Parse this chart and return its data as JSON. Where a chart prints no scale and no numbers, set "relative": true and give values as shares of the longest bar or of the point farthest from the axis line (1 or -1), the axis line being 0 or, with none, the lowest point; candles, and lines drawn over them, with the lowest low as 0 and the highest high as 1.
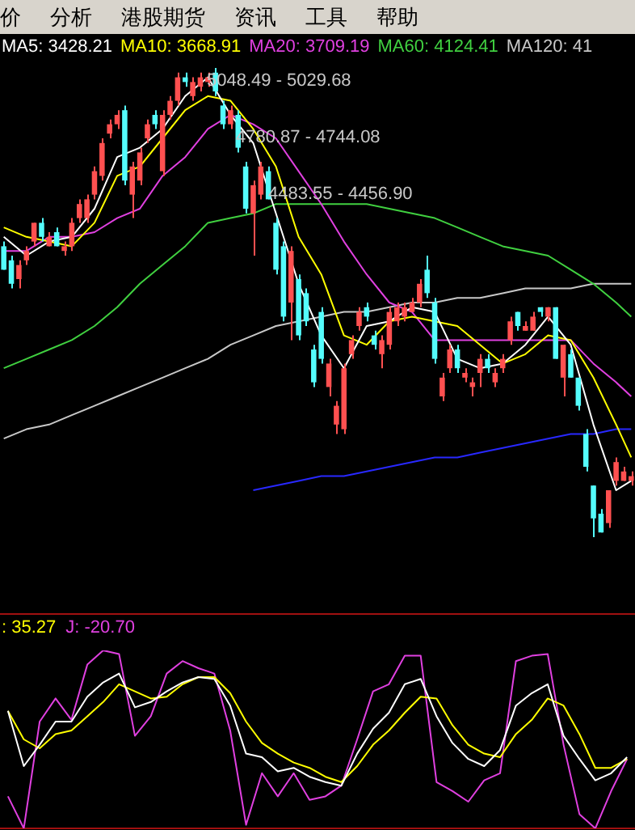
{
  "chart_data": [
    {
      "type": "candlestick",
      "relative": true,
      "tick_labels": false,
      "legend": "top left",
      "annotations": [
        "价",
        "分析",
        "港股期货",
        "资讯",
        "工具",
        "帮助",
        "5048.49 - 5029.68",
        "4780.87 - 4744.08",
        "4483.55 - 4456.90"
      ],
      "categories": [
        null,
        null,
        null,
        null,
        null,
        null,
        null,
        null,
        null,
        null,
        null,
        null,
        null,
        null,
        null,
        null,
        null,
        null,
        null,
        null,
        null,
        null,
        null,
        null,
        null,
        null,
        null,
        null,
        null,
        null,
        null,
        null,
        null,
        null,
        null,
        null,
        null,
        null,
        null,
        null,
        null,
        null,
        null,
        null,
        null,
        null,
        null,
        null,
        null,
        null,
        null,
        null,
        null,
        null,
        null,
        null,
        null,
        null,
        null,
        null,
        null,
        null,
        null,
        null,
        null,
        null,
        null,
        null,
        null,
        null,
        null,
        null,
        null,
        null,
        null,
        null,
        null,
        null,
        null,
        null,
        null,
        null,
        null,
        null
      ],
      "ohlc": [
        [
          0.62,
          0.63,
          0.57,
          0.57
        ],
        [
          0.59,
          0.6,
          0.53,
          0.54
        ],
        [
          0.55,
          0.59,
          0.53,
          0.58
        ],
        [
          0.59,
          0.62,
          0.58,
          0.61
        ],
        [
          0.63,
          0.67,
          0.62,
          0.67
        ],
        [
          0.67,
          0.68,
          0.63,
          0.64
        ],
        [
          0.62,
          0.65,
          0.62,
          0.64
        ],
        [
          0.65,
          0.66,
          0.62,
          0.62
        ],
        [
          0.61,
          0.63,
          0.6,
          0.62
        ],
        [
          0.62,
          0.68,
          0.61,
          0.67
        ],
        [
          0.68,
          0.72,
          0.67,
          0.71
        ],
        [
          0.68,
          0.73,
          0.67,
          0.72
        ],
        [
          0.73,
          0.79,
          0.72,
          0.78
        ],
        [
          0.77,
          0.85,
          0.76,
          0.84
        ],
        [
          0.86,
          0.89,
          0.85,
          0.88
        ],
        [
          0.88,
          0.91,
          0.87,
          0.9
        ],
        [
          0.91,
          0.92,
          0.75,
          0.76
        ],
        [
          0.73,
          0.8,
          0.68,
          0.79
        ],
        [
          0.76,
          0.83,
          0.75,
          0.82
        ],
        [
          0.85,
          0.89,
          0.84,
          0.88
        ],
        [
          0.9,
          0.91,
          0.87,
          0.88
        ],
        [
          0.78,
          0.91,
          0.77,
          0.9
        ],
        [
          0.9,
          0.94,
          0.89,
          0.93
        ],
        [
          0.93,
          0.99,
          0.92,
          0.98
        ],
        [
          0.98,
          0.99,
          0.96,
          0.97
        ],
        [
          0.94,
          0.98,
          0.93,
          0.97
        ],
        [
          0.96,
          0.99,
          0.95,
          0.98
        ],
        [
          0.97,
          0.99,
          0.96,
          0.98
        ],
        [
          0.99,
          1,
          0.94,
          0.95
        ],
        [
          0.92,
          0.93,
          0.87,
          0.88
        ],
        [
          0.88,
          0.92,
          0.87,
          0.91
        ],
        [
          0.9,
          0.91,
          0.82,
          0.83
        ],
        [
          0.79,
          0.8,
          0.69,
          0.7
        ],
        [
          0.69,
          0.76,
          0.6,
          0.75
        ],
        [
          0.73,
          0.8,
          0.72,
          0.79
        ],
        [
          0.78,
          0.79,
          0.72,
          0.72
        ],
        [
          0.67,
          0.68,
          0.56,
          0.57
        ],
        [
          0.62,
          0.63,
          0.46,
          0.47
        ],
        [
          0.5,
          0.62,
          0.42,
          0.61
        ],
        [
          0.55,
          0.56,
          0.42,
          0.43
        ],
        [
          0.52,
          0.53,
          0.45,
          0.46
        ],
        [
          0.4,
          0.41,
          0.32,
          0.33
        ],
        [
          0.48,
          0.49,
          0.37,
          0.38
        ],
        [
          0.32,
          0.38,
          0.3,
          0.37
        ],
        [
          0.24,
          0.29,
          0.22,
          0.28
        ],
        [
          0.23,
          0.37,
          0.22,
          0.36
        ],
        [
          0.39,
          0.43,
          0.38,
          0.42
        ],
        [
          0.45,
          0.49,
          0.44,
          0.48
        ],
        [
          0.49,
          0.5,
          0.46,
          0.47
        ],
        [
          0.43,
          0.44,
          0.4,
          0.41
        ],
        [
          0.39,
          0.43,
          0.36,
          0.42
        ],
        [
          0.41,
          0.49,
          0.4,
          0.48
        ],
        [
          0.46,
          0.5,
          0.45,
          0.49
        ],
        [
          0.47,
          0.5,
          0.46,
          0.49
        ],
        [
          0.48,
          0.51,
          0.48,
          0.5
        ],
        [
          0.5,
          0.55,
          0.49,
          0.54
        ],
        [
          0.57,
          0.6,
          0.51,
          0.52
        ],
        [
          0.5,
          0.51,
          0.37,
          0.38
        ],
        [
          0.3,
          0.35,
          0.29,
          0.34
        ],
        [
          0.36,
          0.41,
          0.35,
          0.4
        ],
        [
          0.4,
          0.41,
          0.35,
          0.36
        ],
        [
          0.34,
          0.36,
          0.33,
          0.35
        ],
        [
          0.32,
          0.34,
          0.3,
          0.33
        ],
        [
          0.35,
          0.39,
          0.32,
          0.38
        ],
        [
          0.38,
          0.39,
          0.35,
          0.36
        ],
        [
          0.33,
          0.36,
          0.32,
          0.35
        ],
        [
          0.36,
          0.39,
          0.35,
          0.38
        ],
        [
          0.42,
          0.47,
          0.41,
          0.46
        ],
        [
          0.48,
          0.48,
          0.44,
          0.45
        ],
        [
          0.44,
          0.46,
          0.44,
          0.45
        ],
        [
          0.44,
          0.48,
          0.44,
          0.47
        ],
        [
          0.49,
          0.49,
          0.47,
          0.48
        ],
        [
          0.47,
          0.49,
          0.46,
          0.49
        ],
        [
          0.49,
          0.49,
          0.38,
          0.38
        ],
        [
          0.34,
          0.41,
          0.3,
          0.41
        ],
        [
          0.39,
          0.4,
          0.34,
          0.34
        ],
        [
          0.34,
          0.34,
          0.27,
          0.28
        ],
        [
          0.22,
          0.23,
          0.14,
          0.15
        ],
        [
          0.11,
          0.11,
          0,
          0.04
        ],
        [
          0.05,
          0.06,
          0.01,
          0.01
        ],
        [
          0.03,
          0.1,
          0.02,
          0.1
        ],
        [
          0.12,
          0.17,
          0.11,
          0.16
        ],
        [
          0.12,
          0.15,
          0.12,
          0.14
        ],
        [
          0.12,
          0.14,
          0.11,
          0.13
        ]
      ],
      "colors": [
        "#54fcfc",
        "#54fcfc",
        "#ff5050",
        "#ff5050",
        "#ff5050",
        "#54fcfc",
        "#ff5050",
        "#54fcfc",
        "#ff5050",
        "#ff5050",
        "#ff5050",
        "#ff5050",
        "#ff5050",
        "#ff5050",
        "#ff5050",
        "#ff5050",
        "#54fcfc",
        "#ff5050",
        "#ff5050",
        "#ff5050",
        "#54fcfc",
        "#ff5050",
        "#ff5050",
        "#ff5050",
        "#54fcfc",
        "#ff5050",
        "#ff5050",
        "#ff5050",
        "#54fcfc",
        "#54fcfc",
        "#ff5050",
        "#54fcfc",
        "#54fcfc",
        "#ff5050",
        "#ff5050",
        "#54fcfc",
        "#54fcfc",
        "#54fcfc",
        "#ff5050",
        "#54fcfc",
        "#54fcfc",
        "#54fcfc",
        "#54fcfc",
        "#ff5050",
        "#ff5050",
        "#ff5050",
        "#ff5050",
        "#ff5050",
        "#54fcfc",
        "#54fcfc",
        "#ff5050",
        "#ff5050",
        "#ff5050",
        "#ff5050",
        "#ff5050",
        "#ff5050",
        "#54fcfc",
        "#54fcfc",
        "#ff5050",
        "#ff5050",
        "#54fcfc",
        "#ff5050",
        "#ff5050",
        "#ff5050",
        "#54fcfc",
        "#ff5050",
        "#ff5050",
        "#ff5050",
        "#54fcfc",
        "#ff5050",
        "#ff5050",
        "#54fcfc",
        "#ff5050",
        "#54fcfc",
        "#ff5050",
        "#54fcfc",
        "#54fcfc",
        "#54fcfc",
        "#54fcfc",
        "#54fcfc",
        "#ff5050",
        "#ff5050",
        "#ff5050",
        "#ff5050"
      ],
      "series": [
        {
          "type": "line",
          "name": "MA5: 3428.21",
          "color": "#ffffff",
          "values": [
            0.64,
            null,
            null,
            0.6,
            null,
            null,
            0.63,
            null,
            null,
            0.64,
            null,
            null,
            0.7,
            null,
            null,
            0.81,
            null,
            null,
            0.83,
            null,
            null,
            0.87,
            null,
            null,
            0.94,
            null,
            null,
            0.98,
            null,
            null,
            0.9,
            null,
            null,
            0.84,
            null,
            null,
            0.69,
            null,
            null,
            0.54,
            null,
            null,
            0.43,
            null,
            null,
            0.36,
            null,
            null,
            0.45,
            null,
            null,
            0.46,
            null,
            null,
            0.49,
            null,
            null,
            0.48,
            null,
            null,
            0.38,
            null,
            null,
            0.36,
            null,
            null,
            0.37,
            null,
            null,
            0.41,
            null,
            null,
            0.47,
            null,
            null,
            0.41,
            null,
            null,
            0.24,
            null,
            null,
            0.1,
            null,
            0.12
          ]
        },
        {
          "type": "line",
          "name": "MA10: 3668.91",
          "color": "#ffff00",
          "values": [
            0.66,
            null,
            null,
            0.64,
            null,
            null,
            0.63,
            null,
            null,
            0.62,
            null,
            null,
            0.67,
            null,
            null,
            0.77,
            null,
            null,
            0.79,
            null,
            null,
            0.85,
            null,
            null,
            0.91,
            null,
            null,
            0.94,
            null,
            null,
            0.93,
            null,
            null,
            0.87,
            null,
            null,
            0.79,
            null,
            null,
            0.64,
            null,
            null,
            0.56,
            null,
            null,
            0.43,
            null,
            null,
            0.41,
            null,
            null,
            0.46,
            null,
            null,
            0.47,
            null,
            null,
            0.46,
            null,
            null,
            0.45,
            null,
            null,
            0.41,
            null,
            null,
            0.37,
            null,
            null,
            0.39,
            null,
            null,
            0.43,
            null,
            null,
            0.42,
            null,
            null,
            0.34,
            null,
            null,
            0.24,
            null,
            0.17
          ]
        },
        {
          "type": "line",
          "name": "MA20: 3709.19",
          "color": "#e040e0",
          "values": [
            0.61,
            null,
            null,
            0.61,
            null,
            null,
            0.64,
            null,
            null,
            0.64,
            null,
            null,
            0.65,
            null,
            null,
            0.68,
            null,
            null,
            0.7,
            null,
            null,
            0.77,
            null,
            null,
            0.81,
            null,
            null,
            0.87,
            null,
            null,
            0.9,
            null,
            null,
            0.88,
            null,
            null,
            0.85,
            null,
            null,
            0.78,
            null,
            null,
            0.71,
            null,
            null,
            0.63,
            null,
            null,
            0.56,
            null,
            null,
            0.5,
            null,
            null,
            0.48,
            null,
            null,
            0.42,
            null,
            null,
            0.42,
            null,
            null,
            0.42,
            null,
            null,
            0.42,
            null,
            null,
            0.42,
            null,
            null,
            0.42,
            null,
            null,
            0.42,
            null,
            null,
            0.37,
            null,
            null,
            0.33,
            null,
            0.3
          ]
        },
        {
          "type": "line",
          "name": "MA60: 4124.41",
          "color": "#40d040",
          "values": [
            0.36,
            null,
            null,
            0.38,
            null,
            null,
            0.4,
            null,
            null,
            0.42,
            null,
            null,
            0.45,
            null,
            null,
            0.49,
            null,
            null,
            0.54,
            null,
            null,
            0.58,
            null,
            null,
            0.62,
            null,
            null,
            0.67,
            null,
            null,
            0.68,
            null,
            null,
            0.69,
            null,
            null,
            0.71,
            null,
            null,
            0.71,
            null,
            null,
            0.71,
            null,
            null,
            0.71,
            null,
            null,
            0.71,
            null,
            null,
            0.7,
            null,
            null,
            0.69,
            null,
            null,
            0.68,
            null,
            null,
            0.66,
            null,
            null,
            0.64,
            null,
            null,
            0.62,
            null,
            null,
            0.61,
            null,
            null,
            0.6,
            null,
            null,
            0.57,
            null,
            null,
            0.54,
            null,
            null,
            0.5,
            null,
            0.47
          ]
        },
        {
          "type": "line",
          "name": "MA120: 41",
          "color": "#c8c8c8",
          "values": [
            0.21,
            null,
            null,
            0.23,
            null,
            null,
            0.24,
            null,
            null,
            0.26,
            null,
            null,
            0.28,
            null,
            null,
            0.3,
            null,
            null,
            0.32,
            null,
            null,
            0.34,
            null,
            null,
            0.36,
            null,
            null,
            0.38,
            null,
            null,
            0.41,
            null,
            null,
            0.43,
            null,
            null,
            0.45,
            null,
            null,
            0.46,
            null,
            null,
            0.47,
            null,
            null,
            0.48,
            null,
            null,
            0.48,
            null,
            null,
            0.49,
            null,
            null,
            0.5,
            null,
            null,
            0.5,
            null,
            null,
            0.51,
            null,
            null,
            0.51,
            null,
            null,
            0.52,
            null,
            null,
            0.53,
            null,
            null,
            0.53,
            null,
            null,
            0.53,
            null,
            null,
            0.54,
            null,
            null,
            0.54,
            null,
            0.54
          ]
        },
        {
          "type": "line",
          "color": "#2828ff",
          "values": [
            null,
            null,
            null,
            null,
            null,
            null,
            null,
            null,
            null,
            null,
            null,
            null,
            null,
            null,
            null,
            null,
            null,
            null,
            null,
            null,
            null,
            null,
            null,
            null,
            null,
            null,
            null,
            null,
            null,
            null,
            null,
            null,
            null,
            0.1,
            null,
            null,
            0.11,
            null,
            null,
            0.12,
            null,
            null,
            0.13,
            null,
            null,
            0.13,
            null,
            null,
            0.14,
            null,
            null,
            0.15,
            null,
            null,
            0.16,
            null,
            null,
            0.17,
            null,
            null,
            0.17,
            null,
            null,
            0.18,
            null,
            null,
            0.19,
            null,
            null,
            0.2,
            null,
            null,
            0.21,
            null,
            null,
            0.22,
            null,
            null,
            0.22,
            null,
            null,
            0.23,
            null,
            0.23
          ]
        }
      ]
    },
    {
      "type": "line",
      "relative": true,
      "tick_labels": false,
      "legend": "top left",
      "categories": [
        null,
        null,
        null,
        null,
        null,
        null,
        null,
        null,
        null,
        null,
        null,
        null,
        null,
        null,
        null,
        null,
        null,
        null,
        null,
        null,
        null,
        null,
        null,
        null,
        null,
        null,
        null,
        null,
        null,
        null,
        null,
        null,
        null,
        null,
        null,
        null,
        null,
        null,
        null,
        null
      ],
      "series": [
        {
          "color": "#ffffff",
          "values": [
            0.66,
            0.35,
            0.47,
            0.6,
            0.6,
            0.74,
            0.82,
            0.87,
            0.68,
            0.71,
            0.77,
            0.82,
            0.85,
            0.84,
            0.69,
            0.42,
            0.4,
            0.32,
            0.34,
            0.29,
            0.26,
            0.24,
            0.42,
            0.56,
            0.65,
            0.81,
            0.84,
            0.63,
            0.48,
            0.39,
            0.35,
            0.44,
            0.69,
            0.76,
            0.81,
            0.52,
            0.39,
            0.27,
            0.31,
            0.4
          ]
        },
        {
          "name": ": 35.27",
          "color": "#ffff00",
          "values": [
            0.66,
            0.5,
            0.45,
            0.53,
            0.55,
            0.63,
            0.71,
            0.81,
            0.77,
            0.73,
            0.74,
            0.81,
            0.85,
            0.85,
            0.76,
            0.6,
            0.48,
            0.42,
            0.37,
            0.34,
            0.29,
            0.26,
            0.35,
            0.47,
            0.55,
            0.65,
            0.74,
            0.73,
            0.58,
            0.47,
            0.42,
            0.4,
            0.53,
            0.61,
            0.73,
            0.69,
            0.53,
            0.34,
            0.34,
            0.39
          ]
        },
        {
          "name": "J: -20.70",
          "color": "#e040e0",
          "values": [
            0.18,
            0,
            0.6,
            0.73,
            0.61,
            0.92,
            1,
            0.98,
            0.52,
            0.63,
            0.87,
            0.94,
            0.9,
            0.87,
            0.55,
            0.02,
            0.31,
            0.18,
            0.31,
            0.16,
            0.18,
            0.24,
            0.5,
            0.77,
            0.81,
            0.97,
            0.97,
            0.26,
            0.21,
            0.15,
            0.27,
            0.31,
            0.94,
            0.97,
            0.98,
            0.47,
            0.08,
            0,
            0.21,
            0.39
          ]
        }
      ]
    }
  ]
}
